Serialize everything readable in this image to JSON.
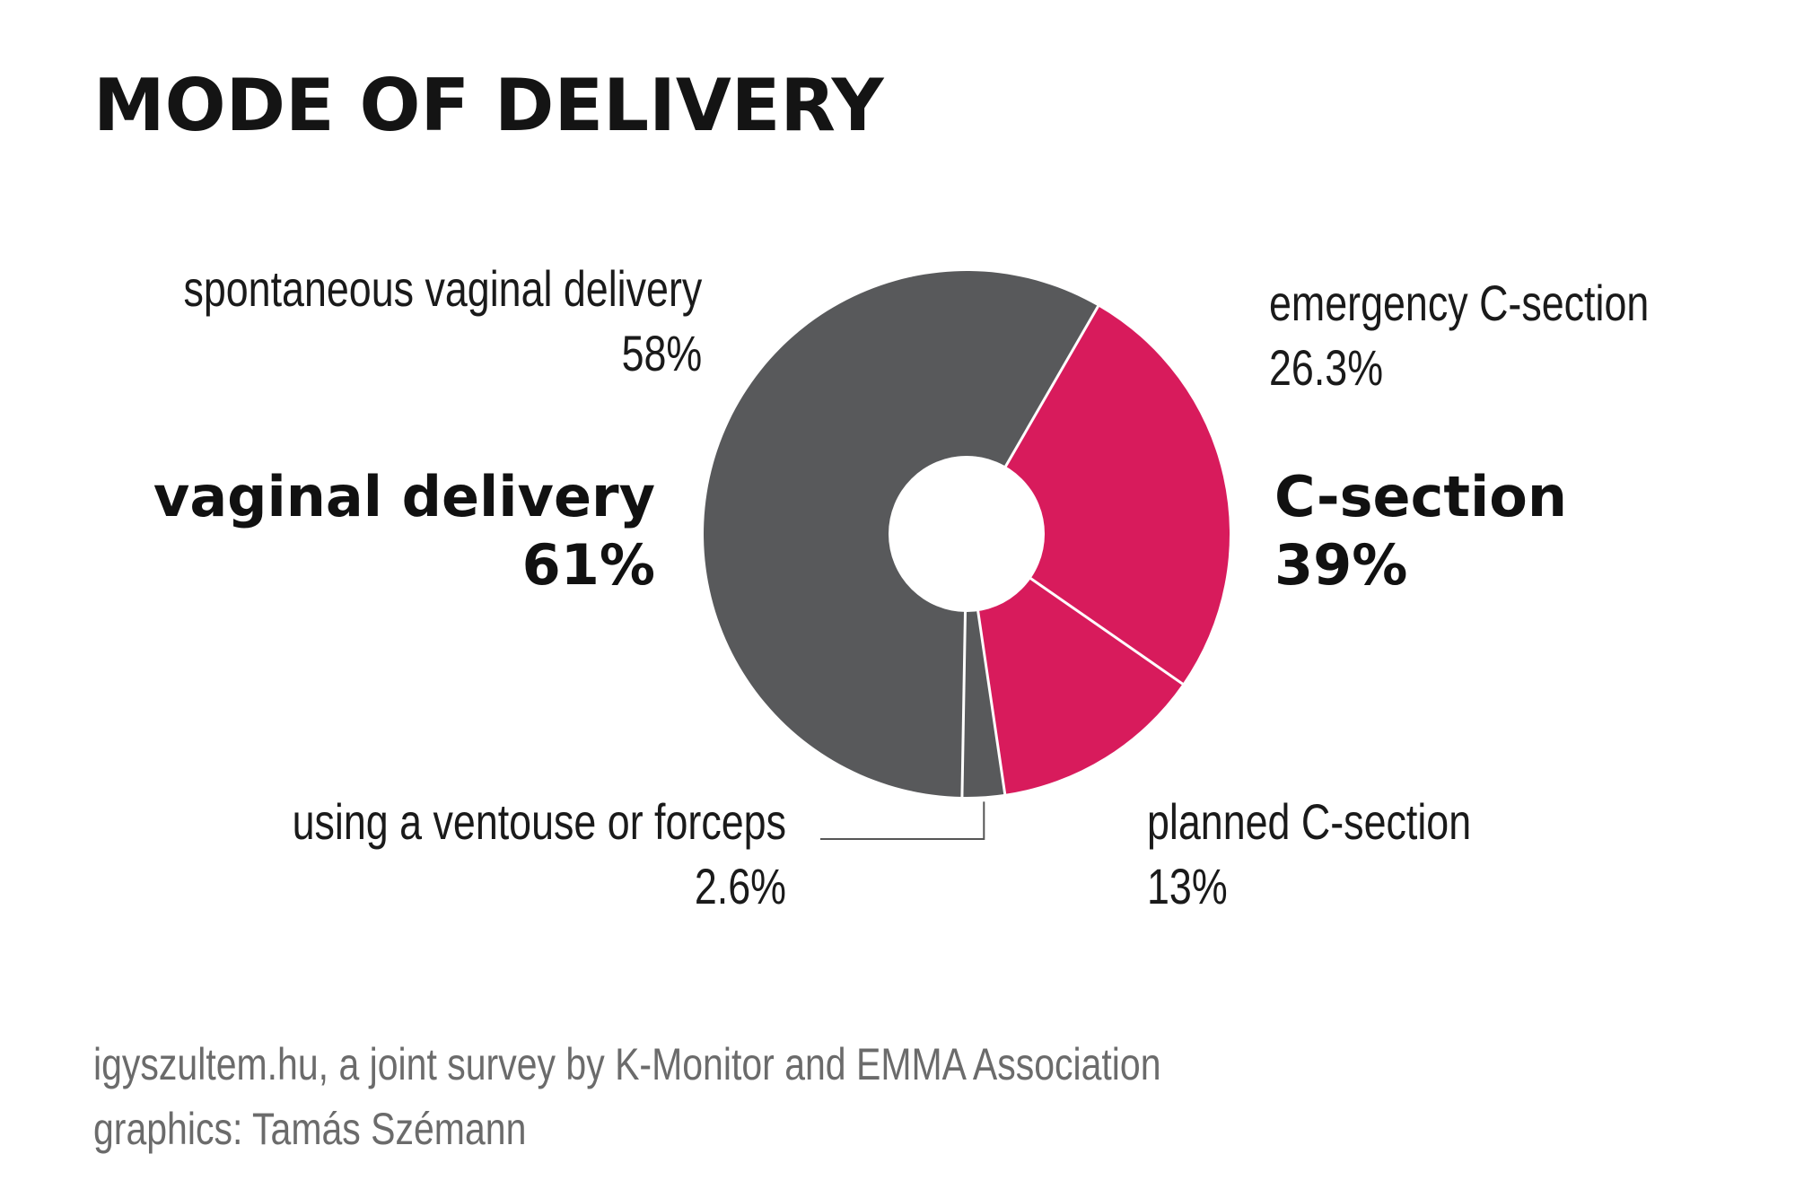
{
  "title": "MODE OF DELIVERY",
  "chart_data": {
    "type": "pie",
    "variant": "donut",
    "title": "MODE OF DELIVERY",
    "slices": [
      {
        "label": "emergency C-section",
        "value": 26.3,
        "value_text": "26.3%",
        "color": "#d81b5c",
        "group": "C-section"
      },
      {
        "label": "planned C-section",
        "value": 13,
        "value_text": "13%",
        "color": "#d81b5c",
        "group": "C-section"
      },
      {
        "label": "using a ventouse or forceps",
        "value": 2.6,
        "value_text": "2.6%",
        "color": "#58595b",
        "group": "vaginal delivery"
      },
      {
        "label": "spontaneous vaginal delivery",
        "value": 58,
        "value_text": "58%",
        "color": "#58595b",
        "group": "vaginal delivery"
      }
    ],
    "groups": [
      {
        "label": "vaginal delivery",
        "value": 61,
        "value_text": "61%",
        "color": "#58595b"
      },
      {
        "label": "C-section",
        "value": 39,
        "value_text": "39%",
        "color": "#d81b5c"
      }
    ]
  },
  "labels": {
    "spontaneous": {
      "name": "spontaneous vaginal delivery",
      "value": "58%"
    },
    "emergency": {
      "name": "emergency C-section",
      "value": "26.3%"
    },
    "planned": {
      "name": "planned C-section",
      "value": "13%"
    },
    "ventouse": {
      "name": "using a ventouse or forceps",
      "value": "2.6%"
    },
    "vaginal_group": {
      "name": "vaginal delivery",
      "value": "61%"
    },
    "csection_group": {
      "name": "C-section",
      "value": "39%"
    }
  },
  "source": {
    "line1": "igyszultem.hu, a joint survey by K-Monitor and EMMA Association",
    "line2": "graphics: Tamás Szémann"
  },
  "colors": {
    "csection": "#d81b5c",
    "vaginal": "#58595b",
    "separator": "#ffffff",
    "leader": "#555555"
  }
}
